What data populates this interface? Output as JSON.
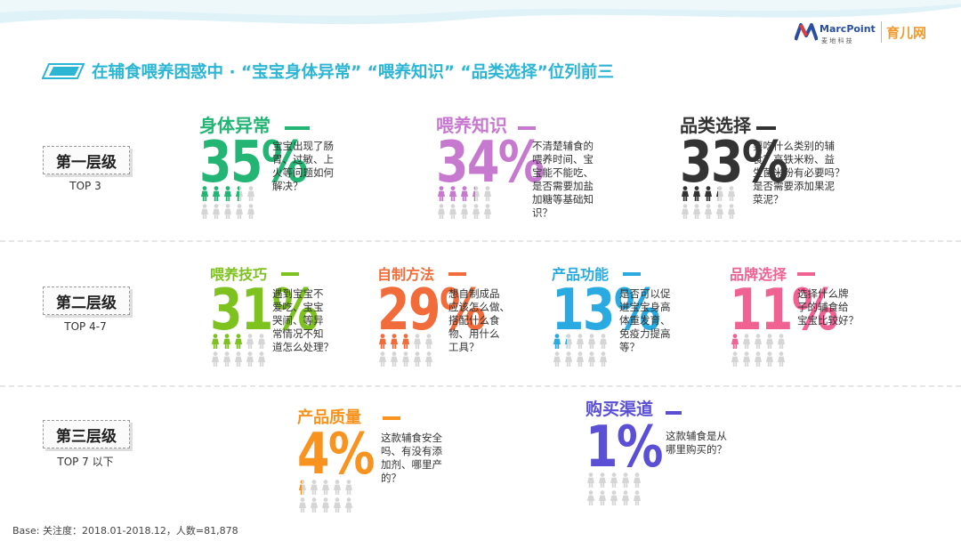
{
  "title": "在辅食喂养困惑中 · “宝宝身体异常” “喂养知识” “品类选择”位列前三",
  "logos": {
    "marcpoint_name": "MarcPoint",
    "marcpoint_cn": "麦 地 科 技",
    "yuer_name": "育儿网"
  },
  "colors": {
    "accent": "#2cb6d4",
    "wave": "#dff2f8",
    "person_gray": "#d5d5d5"
  },
  "tiers": [
    {
      "label": "第一层级",
      "sub": "TOP 3"
    },
    {
      "label": "第二层级",
      "sub": "TOP 4-7"
    },
    {
      "label": "第三层级",
      "sub": "TOP 7 以下"
    }
  ],
  "chart_data": {
    "type": "pictogram",
    "unit": "%",
    "categories": [
      "身体异常",
      "喂养知识",
      "品类选择",
      "喂养技巧",
      "自制方法",
      "产品功能",
      "品牌选择",
      "产品质量",
      "购买渠道"
    ],
    "values": [
      35,
      34,
      33,
      31,
      29,
      13,
      11,
      4,
      1
    ],
    "items": [
      {
        "name": "身体异常",
        "percent_label": "35%",
        "value": 35,
        "color": "#22b573",
        "tier": 1,
        "desc": [
          "宝宝出现了肠",
          "胃、过敏、上",
          "火等问题如何",
          "解决？"
        ]
      },
      {
        "name": "喂养知识",
        "percent_label": "34%",
        "value": 34,
        "color": "#c779d0",
        "tier": 1,
        "desc": [
          "不清楚辅食的",
          "喂养时间、宝",
          "宝能不能吃、",
          "是否需要加盐",
          "加糖等基础知",
          "识？"
        ]
      },
      {
        "name": "品类选择",
        "percent_label": "33%",
        "value": 33,
        "color": "#333333",
        "tier": 1,
        "desc": [
          "要吃什么类别的辅",
          "食？高铁米粉、益",
          "生菌米粉有必要吗？",
          "是否需要添加果泥",
          "菜泥？"
        ]
      },
      {
        "name": "喂养技巧",
        "percent_label": "31%",
        "value": 31,
        "color": "#7dc21e",
        "tier": 2,
        "desc": [
          "遇到宝宝不",
          "爱吃、宝宝",
          "哭闹、等异",
          "常情况不知",
          "道怎么处理？"
        ]
      },
      {
        "name": "自制方法",
        "percent_label": "29%",
        "value": 29,
        "color": "#f26b3a",
        "tier": 2,
        "desc": [
          "想自制成品",
          "应该怎么做、",
          "搭配什么食",
          "物、用什么",
          "工具？"
        ]
      },
      {
        "name": "产品功能",
        "percent_label": "13%",
        "value": 13,
        "color": "#29abe2",
        "tier": 2,
        "desc": [
          "是否可以促",
          "进宝宝身高",
          "体重发育、",
          "免疫力提高",
          "等？"
        ]
      },
      {
        "name": "品牌选择",
        "percent_label": "11%",
        "value": 11,
        "color": "#f06292",
        "tier": 2,
        "desc": [
          "选择什么牌",
          "子的辅食给",
          "宝宝比较好？"
        ]
      },
      {
        "name": "产品质量",
        "percent_label": "4%",
        "value": 4,
        "color": "#f7931e",
        "tier": 3,
        "desc": [
          "这款辅食安全",
          "吗、有没有添",
          "加剂、哪里产",
          "的？"
        ]
      },
      {
        "name": "购买渠道",
        "percent_label": "1%",
        "value": 1,
        "color": "#5b4fd6",
        "tier": 3,
        "desc": [
          "这款辅食是从",
          "哪里购买的？"
        ]
      }
    ]
  },
  "footnote": "Base: 关注度：2018.01-2018.12，人数=81,878"
}
